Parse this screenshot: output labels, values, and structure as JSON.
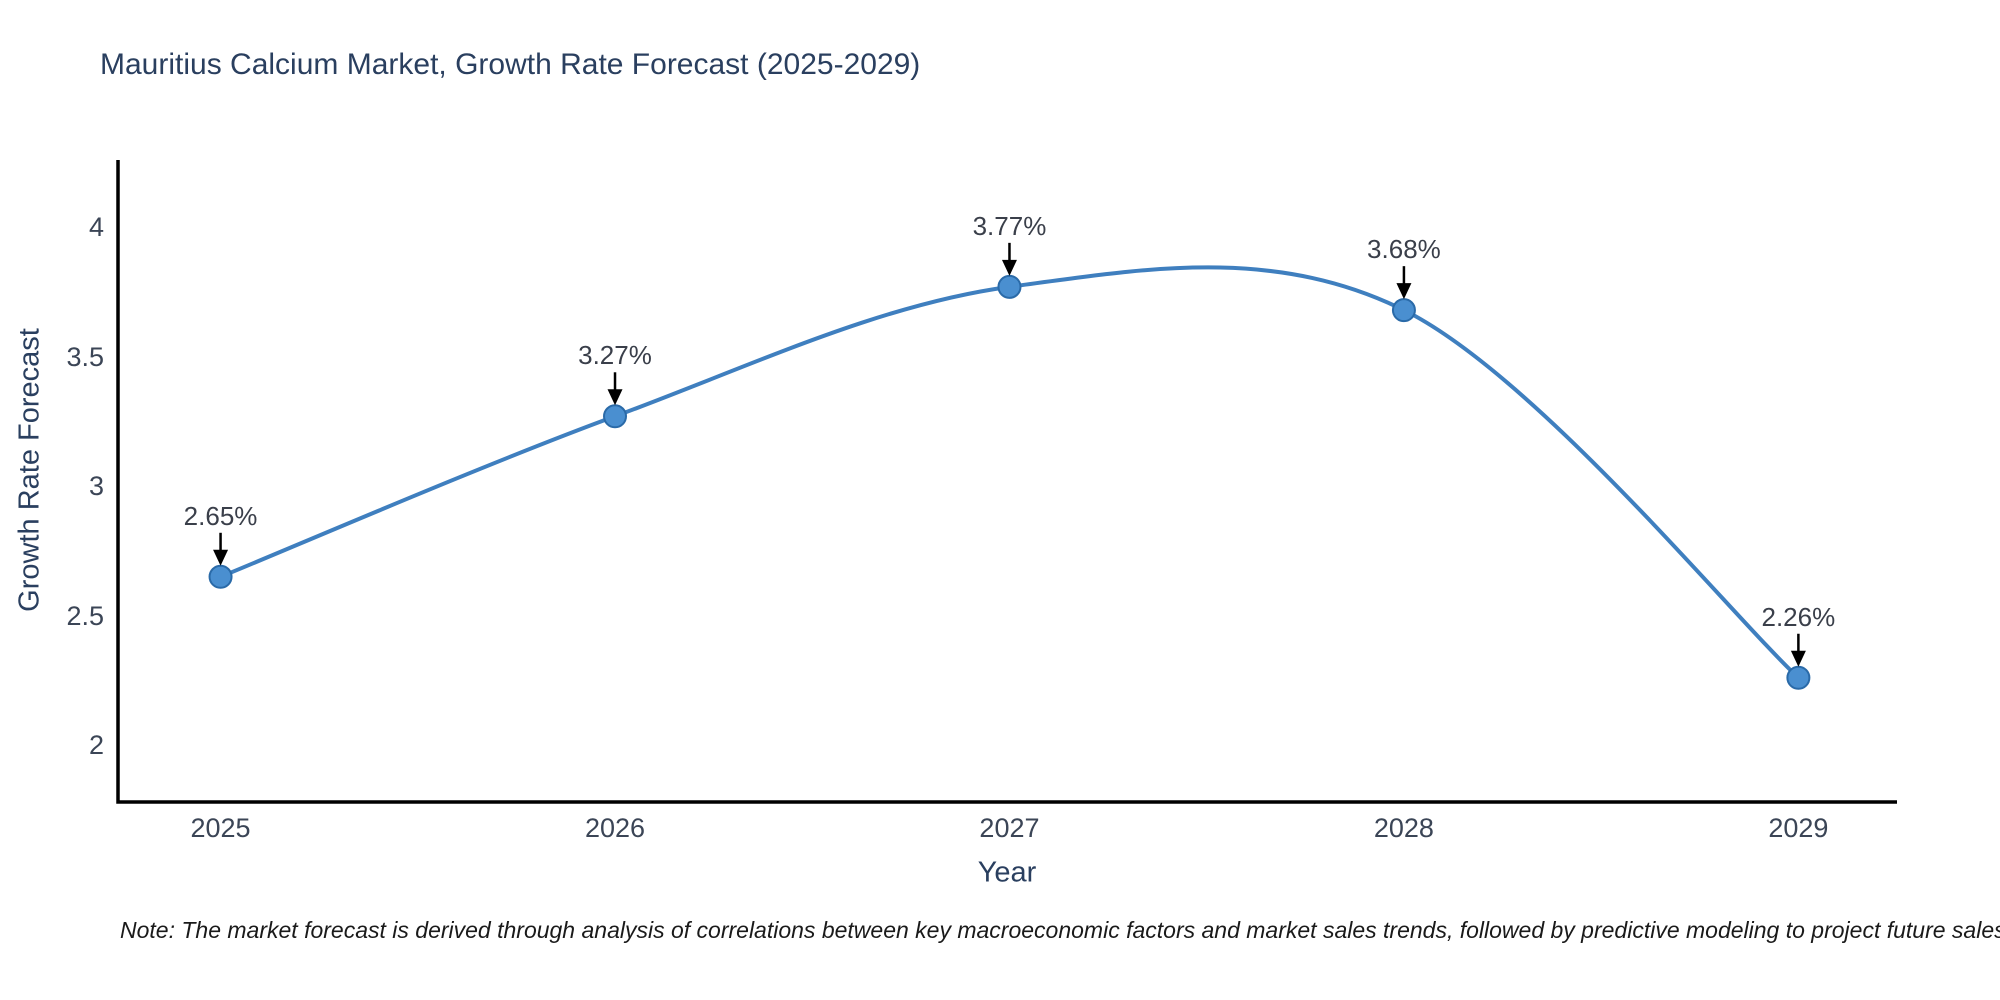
{
  "title": "Mauritius Calcium Market, Growth Rate Forecast (2025-2029)",
  "note": "Note: The market forecast is derived through analysis of correlations between key macroeconomic factors and market sales trends, followed by predictive modeling to project future sales",
  "chart_data": {
    "type": "line",
    "line_shape": "spline",
    "title": "Mauritius Calcium Market, Growth Rate Forecast (2025-2029)",
    "xlabel": "Year",
    "ylabel": "Growth Rate Forecast",
    "x": [
      2025,
      2026,
      2027,
      2028,
      2029
    ],
    "y": [
      2.65,
      3.27,
      3.77,
      3.68,
      2.26
    ],
    "point_labels": [
      "2.65%",
      "3.27%",
      "3.77%",
      "3.68%",
      "2.26%"
    ],
    "xtick_labels": [
      "2025",
      "2026",
      "2027",
      "2028",
      "2029"
    ],
    "yticks": [
      2,
      2.5,
      3,
      3.5,
      4
    ],
    "ytick_labels": [
      "2",
      "2.5",
      "3",
      "3.5",
      "4"
    ],
    "xlim": [
      2024.74,
      2029.25
    ],
    "ylim": [
      1.78,
      4.26
    ],
    "grid": false,
    "legend": "none",
    "colors": {
      "line": "#3f7fbf",
      "marker_fill": "#4a8fd0",
      "marker_edge": "#2a6aa8",
      "arrow": "#000000",
      "axis_line": "#000000",
      "title_text": "#2a3f5f",
      "tick_text": "#3b4556",
      "annotation_text": "#3a3f4a",
      "note_text": "#1a1a1a"
    }
  }
}
